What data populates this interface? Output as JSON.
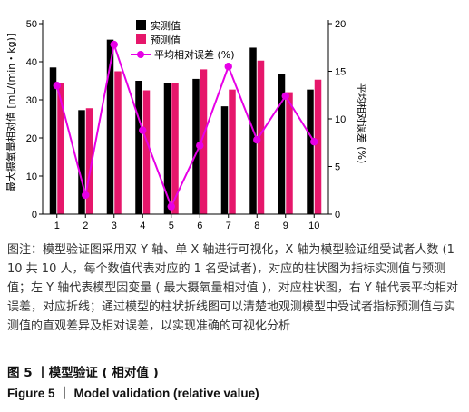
{
  "chart_data": {
    "type": "bar",
    "categories": [
      "1",
      "2",
      "3",
      "4",
      "5",
      "6",
      "7",
      "8",
      "9",
      "10"
    ],
    "xlabel": "",
    "ylabel": "最大摄氧量相对值 [mL/(min・kg)]",
    "y2label": "平均相对误差 (%)",
    "ylim": [
      0,
      50
    ],
    "y2lim": [
      0,
      20
    ],
    "yticks": [
      "0",
      "10",
      "20",
      "30",
      "40",
      "50"
    ],
    "y2ticks": [
      "0",
      "5",
      "10",
      "15",
      "20"
    ],
    "legend_position": "top-right",
    "series": [
      {
        "name": "实测值",
        "type": "bar",
        "axis": "left",
        "color": "#000000",
        "values": [
          38.5,
          27.3,
          45.8,
          35.0,
          34.5,
          35.5,
          28.3,
          43.7,
          36.8,
          32.7
        ]
      },
      {
        "name": "预测值",
        "type": "bar",
        "axis": "left",
        "color": "#e6176b",
        "values": [
          34.5,
          27.8,
          37.5,
          32.5,
          34.3,
          38.0,
          32.7,
          40.3,
          32.0,
          35.3
        ]
      },
      {
        "name": "平均相对误差 (%)",
        "type": "line",
        "axis": "right",
        "color": "#e600e6",
        "values": [
          13.5,
          2.0,
          17.8,
          8.8,
          0.8,
          7.2,
          15.5,
          7.8,
          12.4,
          7.6
        ]
      }
    ]
  },
  "caption": "图注：模型验证图采用双 Y 轴、单 X 轴进行可视化，X 轴为模型验证组受试者人数 (1–10 共 10 人，每个数值代表对应的 1 名受试者)，对应的柱状图为指标实测值与预测值；左 Y 轴代表模型因变量 ( 最大摄氧量相对值 )，对应柱状图，右 Y 轴代表平均相对误差，对应折线；通过模型的柱状折线图可以清楚地观测模型中受试者指标预测值与实测值的直观差异及相对误差，以实现准确的可视化分析",
  "figure_title_cn": "图 5 丨模型验证 ( 相对值 )",
  "figure_title_en": "Figure 5 ｜ Model validation (relative value)"
}
